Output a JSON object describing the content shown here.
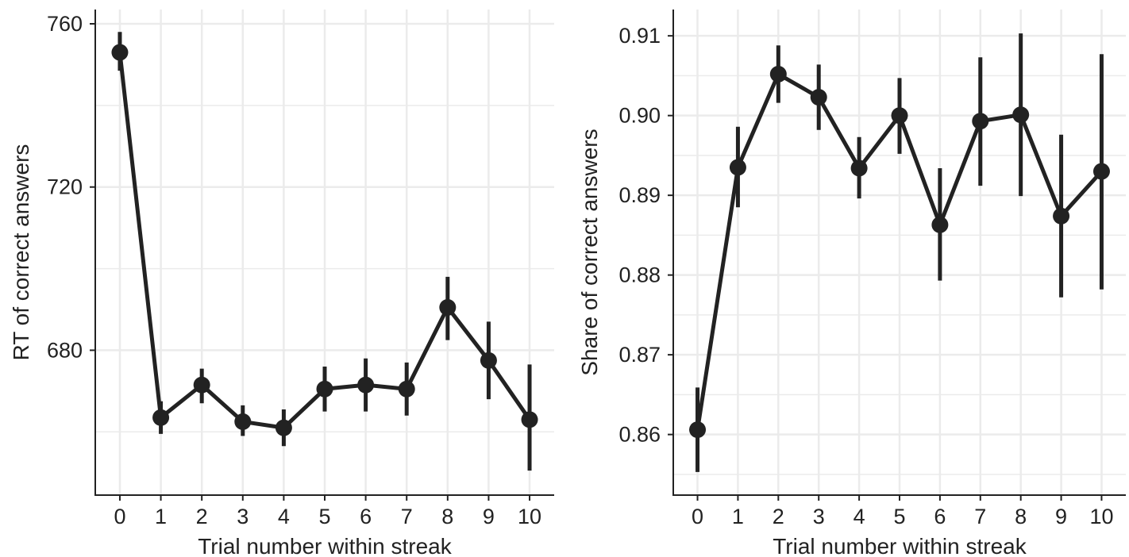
{
  "chart_data": [
    {
      "type": "line",
      "title": "",
      "xlabel": "Trial number within streak",
      "ylabel": "RT of correct answers",
      "x": [
        0,
        1,
        2,
        3,
        4,
        5,
        6,
        7,
        8,
        9,
        10
      ],
      "x_tick_labels": [
        "0",
        "1",
        "2",
        "3",
        "4",
        "5",
        "6",
        "7",
        "8",
        "9",
        "10"
      ],
      "xlim": [
        -0.6,
        10.6
      ],
      "ylim": [
        644.5,
        763.5
      ],
      "y_ticks": [
        680,
        720,
        760
      ],
      "y_tick_labels": [
        "680",
        "720",
        "760"
      ],
      "grid": true,
      "series": [
        {
          "y": [
            753.0,
            663.5,
            671.5,
            662.5,
            661.0,
            670.5,
            671.5,
            670.5,
            690.5,
            677.5,
            663.0
          ],
          "err_low": [
            748.5,
            659.5,
            667.0,
            659.0,
            656.5,
            665.0,
            665.0,
            664.0,
            682.5,
            668.0,
            650.5
          ],
          "err_high": [
            758.0,
            667.5,
            675.5,
            666.5,
            665.5,
            676.0,
            678.0,
            677.0,
            698.0,
            687.0,
            676.5
          ]
        }
      ]
    },
    {
      "type": "line",
      "title": "",
      "xlabel": "Trial number within streak",
      "ylabel": "Share of correct answers",
      "x": [
        0,
        1,
        2,
        3,
        4,
        5,
        6,
        7,
        8,
        9,
        10
      ],
      "x_tick_labels": [
        "0",
        "1",
        "2",
        "3",
        "4",
        "5",
        "6",
        "7",
        "8",
        "9",
        "10"
      ],
      "xlim": [
        -0.6,
        10.6
      ],
      "ylim": [
        0.8524,
        0.9133
      ],
      "y_ticks": [
        0.86,
        0.87,
        0.88,
        0.89,
        0.9,
        0.91
      ],
      "y_tick_labels": [
        "0.86",
        "0.87",
        "0.88",
        "0.89",
        "0.90",
        "0.91"
      ],
      "grid": true,
      "series": [
        {
          "y": [
            0.8606,
            0.8935,
            0.9052,
            0.9023,
            0.8934,
            0.9,
            0.8863,
            0.8993,
            0.9001,
            0.8874,
            0.893
          ],
          "err_low": [
            0.8553,
            0.8885,
            0.9016,
            0.8982,
            0.8896,
            0.8952,
            0.8793,
            0.8912,
            0.8899,
            0.8772,
            0.8782
          ],
          "err_high": [
            0.8659,
            0.8986,
            0.9088,
            0.9064,
            0.8973,
            0.9047,
            0.8934,
            0.9073,
            0.9103,
            0.8976,
            0.9077
          ]
        }
      ]
    }
  ]
}
